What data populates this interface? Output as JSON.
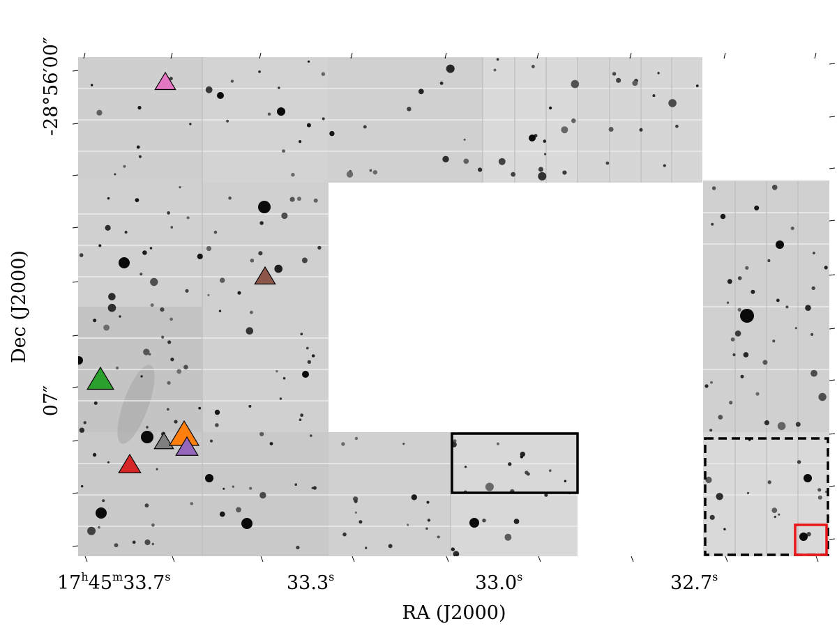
{
  "chart_data": {
    "type": "image",
    "xlabel": "RA (J2000)",
    "ylabel": "Dec (J2000)",
    "x_ticks": [
      {
        "pre": "17",
        "sup1": "h",
        "mid": "45",
        "sup2": "m",
        "post": "33.7",
        "sup3": "s"
      },
      {
        "pre": "",
        "sup1": "",
        "mid": "",
        "sup2": "",
        "post": "33.3",
        "sup3": "s"
      },
      {
        "pre": "",
        "sup1": "",
        "mid": "",
        "sup2": "",
        "post": "33.0",
        "sup3": "s"
      },
      {
        "pre": "",
        "sup1": "",
        "mid": "",
        "sup2": "",
        "post": "32.7",
        "sup3": "s"
      }
    ],
    "y_ticks": [
      "-28°56′00″",
      "07″"
    ],
    "markers": [
      {
        "name": "pink",
        "color": "#e377c2"
      },
      {
        "name": "brown",
        "color": "#8c564b"
      },
      {
        "name": "green",
        "color": "#2ca02c"
      },
      {
        "name": "orange",
        "color": "#ff7f0e"
      },
      {
        "name": "gray",
        "color": "#7f7f7f"
      },
      {
        "name": "purple",
        "color": "#9467bd"
      },
      {
        "name": "red",
        "color": "#d62728"
      }
    ],
    "boxes": [
      {
        "name": "solid-black-box",
        "color": "#000000",
        "style": "solid"
      },
      {
        "name": "dashed-black-box",
        "color": "#000000",
        "style": "dashed"
      },
      {
        "name": "red-box",
        "color": "#e8161b",
        "style": "solid"
      }
    ],
    "colormap": "gray_r",
    "background_gray": "#d0d0d0"
  }
}
